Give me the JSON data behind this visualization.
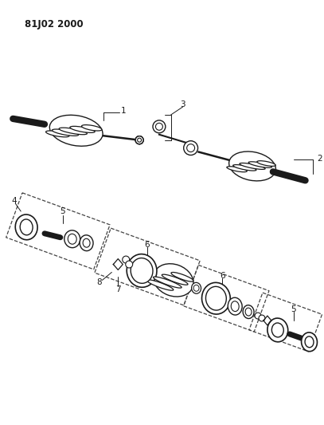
{
  "title": "81J02 2000",
  "bg_color": "#ffffff",
  "line_color": "#1a1a1a",
  "fig_width": 4.07,
  "fig_height": 5.33,
  "dpi": 100
}
